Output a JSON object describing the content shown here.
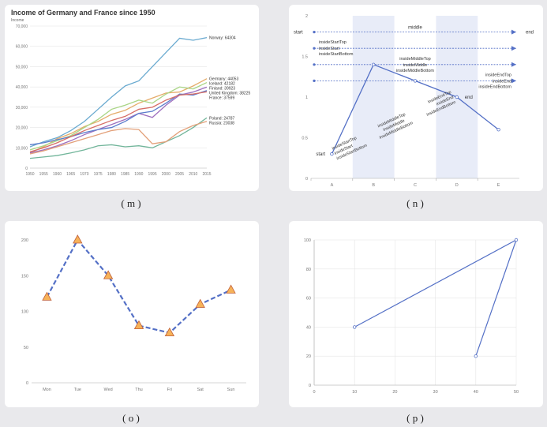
{
  "captions": [
    "( m )",
    "( n )",
    "( o )",
    "( p )"
  ],
  "chart_data": [
    {
      "id": "m",
      "type": "line",
      "title": "Income of Germany and France since 1950",
      "ylabel": "Income",
      "xlabel": "",
      "ylim": [
        0,
        70000
      ],
      "y_ticks": [
        "0",
        "10,000",
        "20,000",
        "30,000",
        "40,000",
        "50,000",
        "60,000",
        "70,000"
      ],
      "x": [
        1950,
        1955,
        1960,
        1965,
        1970,
        1975,
        1980,
        1985,
        1990,
        1995,
        2000,
        2005,
        2010,
        2015
      ],
      "series": [
        {
          "name": "Norway",
          "label": "Norway: 64304",
          "color": "#6aaad0",
          "values": [
            10500,
            13000,
            15000,
            18500,
            23000,
            29000,
            35000,
            40500,
            43000,
            50000,
            57000,
            64000,
            63000,
            64304
          ]
        },
        {
          "name": "Germany",
          "label": "Germany: 44053",
          "color": "#e5ac6a",
          "values": [
            7500,
            10500,
            14500,
            17000,
            20500,
            23000,
            26500,
            28500,
            32000,
            34500,
            37000,
            37500,
            40500,
            44053
          ]
        },
        {
          "name": "Iceland",
          "label": "Iceland: 42182",
          "color": "#a9d585",
          "values": [
            9000,
            11000,
            13500,
            16000,
            20000,
            24000,
            29000,
            31000,
            33500,
            32000,
            36500,
            40000,
            39000,
            42182
          ]
        },
        {
          "name": "Finland",
          "label": "Finland: 39923",
          "color": "#9e6fbe",
          "values": [
            7500,
            9000,
            11000,
            13500,
            16500,
            19000,
            21500,
            24000,
            27000,
            25000,
            31000,
            36000,
            37500,
            39923
          ]
        },
        {
          "name": "United Kingdom",
          "label": "United Kingdom: 38225",
          "color": "#5b7ccc",
          "values": [
            11500,
            12500,
            14000,
            15500,
            17500,
            19000,
            20000,
            23000,
            27000,
            28000,
            32000,
            36500,
            36000,
            38225
          ]
        },
        {
          "name": "France",
          "label": "France: 37599",
          "color": "#d76d66",
          "values": [
            8000,
            10000,
            12500,
            15500,
            18500,
            21000,
            23500,
            25500,
            29000,
            30000,
            33500,
            36000,
            36500,
            37599
          ]
        },
        {
          "name": "Poland",
          "label": "Poland: 24787",
          "color": "#71b59a",
          "values": [
            4800,
            5500,
            6200,
            7500,
            9000,
            11000,
            11500,
            10500,
            11000,
            10000,
            13000,
            16000,
            20000,
            24787
          ]
        },
        {
          "name": "Russia",
          "label": "Russia: 23038",
          "color": "#e3a079",
          "values": [
            7000,
            8500,
            10500,
            12500,
            14500,
            16500,
            18500,
            19500,
            19000,
            12000,
            13000,
            18000,
            21000,
            23038
          ]
        }
      ]
    },
    {
      "id": "n",
      "type": "line",
      "title": "",
      "categories": [
        "A",
        "B",
        "C",
        "D",
        "E"
      ],
      "values": [
        0.3,
        1.4,
        1.2,
        1.0,
        0.6
      ],
      "ylim": [
        0,
        2
      ],
      "y_ticks": [
        "0",
        "0.5",
        "1",
        "1.5",
        "2"
      ],
      "color": "#5470c6",
      "markArea_bands": [
        "B",
        "D"
      ],
      "markLines": [
        {
          "y": 1.8,
          "label_start": "start",
          "label_middle": "middle",
          "label_end": "end"
        },
        {
          "y": 1.6,
          "labels": [
            "insideStartTop",
            "insideStart",
            "insideStartBottom"
          ]
        },
        {
          "y": 1.4,
          "labels": [
            "insideMiddleTop",
            "insideMiddle",
            "insideMiddleBottom"
          ]
        },
        {
          "y": 1.2,
          "labels": [
            "insideEndTop",
            "insideEnd",
            "insideEndBottom"
          ]
        }
      ],
      "series_label_start": "start",
      "series_label_end": "end",
      "slanted_labels": {
        "start_group": [
          "insideStartTop",
          "insideStart",
          "insideStartBottom"
        ],
        "middle_group": [
          "insideMiddleTop",
          "insideMiddle",
          "insideMiddleBottom"
        ],
        "end_group": [
          "insideEndTop",
          "insideEnd",
          "insideEndBottom"
        ]
      }
    },
    {
      "id": "o",
      "type": "line",
      "title": "",
      "categories": [
        "Mon",
        "Tue",
        "Wed",
        "Thu",
        "Fri",
        "Sat",
        "Sun"
      ],
      "values": [
        120,
        200,
        150,
        80,
        70,
        110,
        130
      ],
      "ylim": [
        0,
        200
      ],
      "y_ticks": [
        "0",
        "50",
        "100",
        "150",
        "200"
      ],
      "line_style": "dashed",
      "marker": "triangle",
      "color": "#5470c6",
      "marker_color": "#f6b259"
    },
    {
      "id": "p",
      "type": "line",
      "title": "",
      "x": [
        10,
        50,
        40
      ],
      "y": [
        40,
        100,
        20
      ],
      "xlim": [
        0,
        50
      ],
      "ylim": [
        0,
        100
      ],
      "x_ticks": [
        "0",
        "10",
        "20",
        "30",
        "40",
        "50"
      ],
      "y_ticks": [
        "0",
        "20",
        "40",
        "60",
        "80",
        "100"
      ],
      "color": "#5470c6"
    }
  ]
}
